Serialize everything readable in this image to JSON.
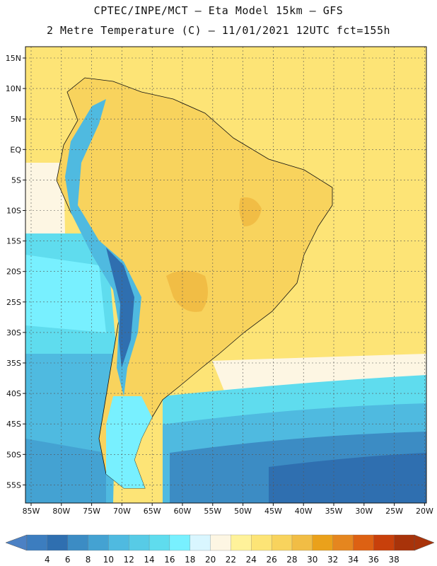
{
  "header": {
    "title_line1": "CPTEC/INPE/MCT –  Eta Model 15km – GFS",
    "title_line2": "2 Metre Temperature (C) – 11/01/2021 12UTC fct=155h"
  },
  "axes": {
    "lon_labels": [
      "85W",
      "80W",
      "75W",
      "70W",
      "65W",
      "60W",
      "55W",
      "50W",
      "45W",
      "40W",
      "35W",
      "30W",
      "25W",
      "20W"
    ],
    "lat_labels": [
      "15N",
      "10N",
      "5N",
      "EQ",
      "5S",
      "10S",
      "15S",
      "20S",
      "25S",
      "30S",
      "35S",
      "40S",
      "45S",
      "50S",
      "55S"
    ]
  },
  "colorbar": {
    "labels": [
      "4",
      "6",
      "8",
      "10",
      "12",
      "14",
      "16",
      "18",
      "20",
      "22",
      "24",
      "26",
      "28",
      "30",
      "32",
      "34",
      "36",
      "38"
    ],
    "colors": [
      "#3c7dbf",
      "#2f6fb0",
      "#3c8cc4",
      "#44a2d2",
      "#4fbae0",
      "#57cbe6",
      "#5fdcee",
      "#78f0ff",
      "#d9f6ff",
      "#fdf6e3",
      "#fff29a",
      "#fde476",
      "#f8d35d",
      "#f1bd45",
      "#eaa11b",
      "#e5861f",
      "#dd6113",
      "#c8400b",
      "#a8330a"
    ],
    "low_color": "#4c81c4",
    "high_color": "#a8330a"
  }
}
